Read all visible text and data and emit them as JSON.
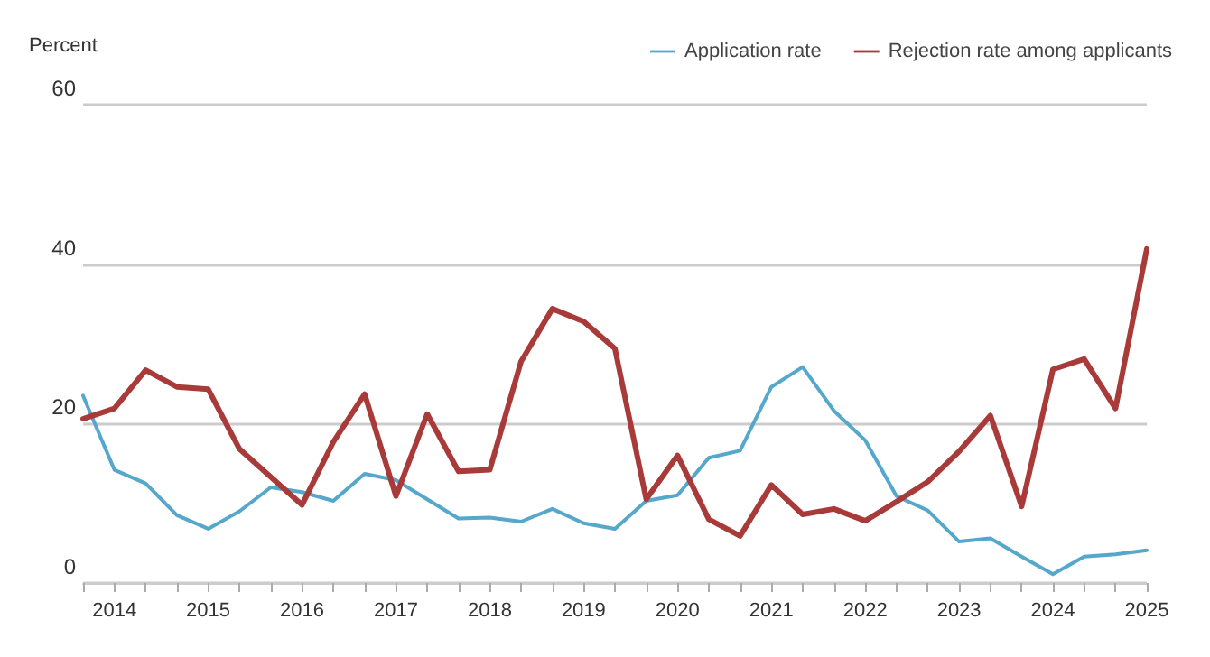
{
  "chart_data": {
    "type": "line",
    "ylabel": "Percent",
    "categories": [
      null,
      "2014",
      null,
      null,
      "2015",
      null,
      null,
      "2016",
      null,
      null,
      "2017",
      null,
      null,
      "2018",
      null,
      null,
      "2019",
      null,
      null,
      "2020",
      null,
      null,
      "2021",
      null,
      null,
      "2022",
      null,
      null,
      "2023",
      null,
      null,
      "2024",
      null,
      null,
      "2025"
    ],
    "series": [
      {
        "name": "Application rate",
        "color": "#55a7cb",
        "values": [
          23.5,
          14.2,
          12.5,
          8.5,
          6.8,
          9.0,
          12.0,
          11.4,
          10.3,
          13.7,
          12.9,
          10.5,
          8.1,
          8.2,
          7.7,
          9.3,
          7.5,
          6.8,
          10.3,
          11.0,
          15.7,
          16.6,
          24.6,
          27.1,
          21.6,
          17.9,
          10.9,
          9.1,
          5.2,
          5.6,
          3.3,
          1.1,
          3.3,
          3.6,
          4.1
        ]
      },
      {
        "name": "Rejection rate among applicants",
        "color": "#a83a3a",
        "values": [
          20.6,
          21.9,
          26.7,
          24.6,
          24.3,
          16.8,
          13.3,
          9.8,
          17.7,
          23.7,
          10.9,
          21.2,
          14.0,
          14.2,
          27.8,
          34.4,
          32.8,
          29.4,
          10.5,
          16.0,
          8.0,
          5.9,
          12.3,
          8.6,
          9.3,
          7.8,
          10.2,
          12.7,
          16.5,
          21.0,
          9.6,
          26.8,
          28.1,
          21.9,
          41.9
        ]
      }
    ],
    "ylim": [
      0,
      60
    ],
    "yticks": [
      0,
      20,
      40,
      60
    ],
    "grid": "y",
    "legend": "top right",
    "marker": "none",
    "line_style": "solid"
  }
}
